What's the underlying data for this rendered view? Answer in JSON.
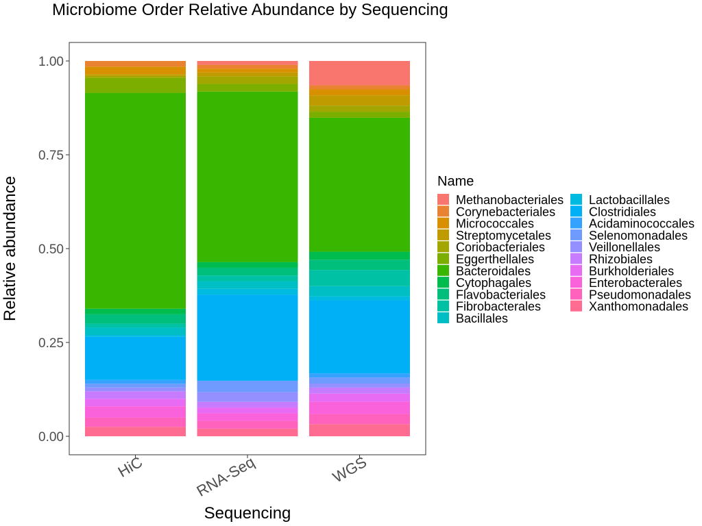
{
  "chart_data": {
    "type": "bar",
    "stacked": true,
    "title": "Microbiome Order Relative Abundance by Sequencing",
    "xlabel": "Sequencing",
    "ylabel": "Relative abundance",
    "categories": [
      "HiC",
      "RNA-Seq",
      "WGS"
    ],
    "ylim": [
      0,
      1
    ],
    "y_ticks": [
      "0.00",
      "0.25",
      "0.50",
      "0.75",
      "1.00"
    ],
    "y_tick_values": [
      0,
      0.25,
      0.5,
      0.75,
      1.0
    ],
    "grid": false,
    "legend": {
      "title": "Name",
      "position": "right",
      "columns": 2
    },
    "series": [
      {
        "name": "Methanobacteriales",
        "color": "#F8766D",
        "values": [
          0.0,
          0.01,
          0.06
        ]
      },
      {
        "name": "Corynebacteriales",
        "color": "#EA8331",
        "values": [
          0.015,
          0.01,
          0.01
        ]
      },
      {
        "name": "Micrococcales",
        "color": "#D89000",
        "values": [
          0.02,
          0.01,
          0.015
        ]
      },
      {
        "name": "Streptomycetales",
        "color": "#C09B00",
        "values": [
          0.005,
          0.01,
          0.025
        ]
      },
      {
        "name": "Coriobacteriales",
        "color": "#A3A500",
        "values": [
          0.005,
          0.02,
          0.015
        ]
      },
      {
        "name": "Eggerthellales",
        "color": "#7CAE00",
        "values": [
          0.04,
          0.02,
          0.015
        ]
      },
      {
        "name": "Bacteroidales",
        "color": "#39B600",
        "values": [
          0.575,
          0.445,
          0.33
        ]
      },
      {
        "name": "Cytophagales",
        "color": "#00BB4E",
        "values": [
          0.015,
          0.015,
          0.02
        ]
      },
      {
        "name": "Flavobacteriales",
        "color": "#00BF7D",
        "values": [
          0.025,
          0.02,
          0.025
        ]
      },
      {
        "name": "Fibrobacterales",
        "color": "#00C1A3",
        "values": [
          0.01,
          0.015,
          0.04
        ]
      },
      {
        "name": "Bacillales",
        "color": "#00BFC4",
        "values": [
          0.02,
          0.02,
          0.025
        ]
      },
      {
        "name": "Lactobacillales",
        "color": "#00BAE0",
        "values": [
          0.005,
          0.015,
          0.01
        ]
      },
      {
        "name": "Clostridiales",
        "color": "#00B0F6",
        "values": [
          0.115,
          0.225,
          0.18
        ]
      },
      {
        "name": "Acidaminococcales",
        "color": "#35A2FF",
        "values": [
          0.01,
          0.0,
          0.01
        ]
      },
      {
        "name": "Selenomonadales",
        "color": "#6F9BFF",
        "values": [
          0.01,
          0.03,
          0.015
        ]
      },
      {
        "name": "Veillonellales",
        "color": "#9590FF",
        "values": [
          0.01,
          0.025,
          0.01
        ]
      },
      {
        "name": "Rhizobiales",
        "color": "#C77CFF",
        "values": [
          0.02,
          0.015,
          0.015
        ]
      },
      {
        "name": "Burkholderiales",
        "color": "#E76BF3",
        "values": [
          0.02,
          0.015,
          0.02
        ]
      },
      {
        "name": "Enterobacterales",
        "color": "#FA62DB",
        "values": [
          0.03,
          0.02,
          0.03
        ]
      },
      {
        "name": "Pseudomonadales",
        "color": "#FF62BC",
        "values": [
          0.025,
          0.02,
          0.025
        ]
      },
      {
        "name": "Xanthomonadales",
        "color": "#FF6C91",
        "values": [
          0.025,
          0.02,
          0.03
        ]
      }
    ]
  }
}
